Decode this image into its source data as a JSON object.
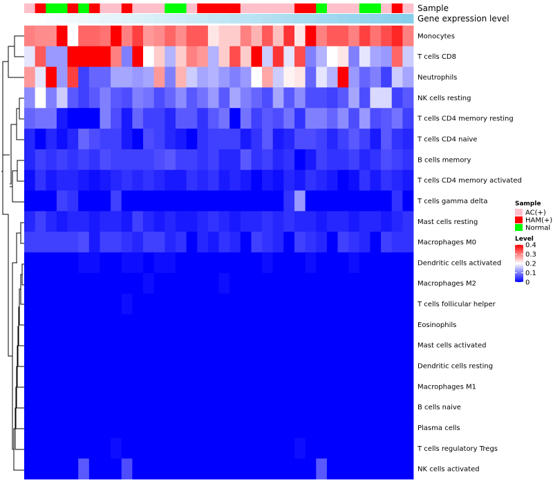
{
  "chart_data": {
    "type": "heatmap",
    "title": "",
    "annotation_labels": {
      "sample": "Sample",
      "gene_expression": "Gene expression level"
    },
    "rows": [
      "Monocytes",
      "T cells CD8",
      "Neutrophils",
      "NK cells resting",
      "T cells CD4 memory resting",
      "T cells CD4 naive",
      "B cells memory",
      "T cells CD4 memory activated",
      "T cells gamma delta",
      "Mast cells resting",
      "Macrophages M0",
      "Dendritic cells activated",
      "Macrophages M2",
      "T cells follicular helper",
      "Eosinophils",
      "Mast cells activated",
      "Dendritic cells resting",
      "Macrophages M1",
      "B cells naive",
      "Plasma cells",
      "T cells regulatory  Tregs",
      "NK cells activated"
    ],
    "sample_groups": [
      "AC(+)",
      "HAM(+)",
      "Normal",
      "Normal",
      "HAM(+)",
      "Normal",
      "HAM(+)",
      "AC(+)",
      "AC(+)",
      "HAM(+)",
      "AC(+)",
      "AC(+)",
      "AC(+)",
      "Normal",
      "Normal",
      "AC(+)",
      "HAM(+)",
      "HAM(+)",
      "HAM(+)",
      "HAM(+)",
      "AC(+)",
      "AC(+)",
      "AC(+)",
      "AC(+)",
      "AC(+)",
      "HAM(+)",
      "HAM(+)",
      "Normal",
      "AC(+)",
      "AC(+)",
      "AC(+)",
      "Normal",
      "Normal",
      "AC(+)",
      "HAM(+)",
      "AC(+)"
    ],
    "values": [
      [
        0.3,
        0.29,
        0.29,
        0.4,
        0.2,
        0.32,
        0.32,
        0.31,
        0.4,
        0.3,
        0.35,
        0.28,
        0.29,
        0.32,
        0.29,
        0.33,
        0.33,
        0.22,
        0.24,
        0.24,
        0.3,
        0.26,
        0.33,
        0.25,
        0.36,
        0.22,
        0.4,
        0.3,
        0.33,
        0.33,
        0.3,
        0.35,
        0.31,
        0.34,
        0.37,
        0.3
      ],
      [
        0.18,
        0.33,
        0.12,
        0.12,
        0.4,
        0.4,
        0.4,
        0.4,
        0.3,
        0.1,
        0.4,
        0.2,
        0.24,
        0.14,
        0.24,
        0.3,
        0.28,
        0.14,
        0.24,
        0.34,
        0.24,
        0.4,
        0.16,
        0.36,
        0.18,
        0.34,
        0.1,
        0.14,
        0.2,
        0.22,
        0.1,
        0.18,
        0.13,
        0.12,
        0.32,
        0.16
      ],
      [
        0.28,
        0.18,
        0.4,
        0.12,
        0.35,
        0.05,
        0.08,
        0.08,
        0.13,
        0.13,
        0.12,
        0.13,
        0.28,
        0.1,
        0.26,
        0.16,
        0.13,
        0.14,
        0.12,
        0.1,
        0.12,
        0.2,
        0.27,
        0.16,
        0.21,
        0.22,
        0.08,
        0.18,
        0.14,
        0.4,
        0.12,
        0.08,
        0.1,
        0.05,
        0.16,
        0.13
      ],
      [
        0.11,
        0.2,
        0.1,
        0.16,
        0.07,
        0.05,
        0.07,
        0.1,
        0.07,
        0.06,
        0.1,
        0.09,
        0.06,
        0.08,
        0.11,
        0.07,
        0.09,
        0.12,
        0.07,
        0.13,
        0.1,
        0.08,
        0.06,
        0.13,
        0.07,
        0.11,
        0.06,
        0.06,
        0.05,
        0.07,
        0.13,
        0.06,
        0.17,
        0.17,
        0.05,
        0.07
      ],
      [
        0.08,
        0.09,
        0.09,
        0.02,
        0.0,
        0.0,
        0.0,
        0.1,
        0.06,
        0.02,
        0.08,
        0.05,
        0.05,
        0.03,
        0.07,
        0.07,
        0.04,
        0.07,
        0.09,
        0.0,
        0.09,
        0.05,
        0.07,
        0.06,
        0.09,
        0.04,
        0.1,
        0.1,
        0.08,
        0.11,
        0.06,
        0.12,
        0.06,
        0.07,
        0.09,
        0.05
      ],
      [
        0.03,
        0.0,
        0.03,
        0.01,
        0.03,
        0.08,
        0.06,
        0.05,
        0.05,
        0.02,
        0.0,
        0.06,
        0.05,
        0.03,
        0.02,
        0.0,
        0.04,
        0.05,
        0.05,
        0.05,
        0.02,
        0.04,
        0.07,
        0.02,
        0.03,
        0.06,
        0.06,
        0.05,
        0.03,
        0.05,
        0.07,
        0.05,
        0.02,
        0.07,
        0.04,
        0.03
      ],
      [
        0.03,
        0.05,
        0.04,
        0.05,
        0.04,
        0.05,
        0.04,
        0.06,
        0.05,
        0.05,
        0.05,
        0.05,
        0.06,
        0.07,
        0.05,
        0.05,
        0.04,
        0.05,
        0.03,
        0.03,
        0.07,
        0.04,
        0.05,
        0.03,
        0.04,
        0.0,
        0.02,
        0.05,
        0.04,
        0.04,
        0.05,
        0.03,
        0.04,
        0.06,
        0.05,
        0.04
      ],
      [
        0.01,
        0.04,
        0.02,
        0.03,
        0.03,
        0.02,
        0.01,
        0.02,
        0.03,
        0.04,
        0.03,
        0.04,
        0.03,
        0.02,
        0.02,
        0.04,
        0.03,
        0.04,
        0.02,
        0.03,
        0.02,
        0.0,
        0.02,
        0.01,
        0.03,
        0.02,
        0.04,
        0.03,
        0.02,
        0.0,
        0.01,
        0.04,
        0.02,
        0.04,
        0.03,
        0.02
      ],
      [
        0.0,
        0.0,
        0.0,
        0.05,
        0.04,
        0.0,
        0.0,
        0.0,
        0.05,
        0.0,
        0.0,
        0.0,
        0.0,
        0.0,
        0.0,
        0.0,
        0.0,
        0.0,
        0.0,
        0.0,
        0.0,
        0.0,
        0.0,
        0.0,
        0.04,
        0.12,
        0.0,
        0.0,
        0.0,
        0.0,
        0.0,
        0.0,
        0.0,
        0.0,
        0.04,
        0.0
      ],
      [
        0.03,
        0.05,
        0.03,
        0.02,
        0.03,
        0.03,
        0.02,
        0.03,
        0.03,
        0.02,
        0.05,
        0.03,
        0.02,
        0.03,
        0.02,
        0.02,
        0.03,
        0.04,
        0.03,
        0.02,
        0.03,
        0.03,
        0.04,
        0.03,
        0.04,
        0.03,
        0.03,
        0.02,
        0.03,
        0.03,
        0.02,
        0.03,
        0.03,
        0.02,
        0.03,
        0.04
      ],
      [
        0.05,
        0.05,
        0.05,
        0.05,
        0.05,
        0.06,
        0.02,
        0.05,
        0.05,
        0.04,
        0.03,
        0.05,
        0.05,
        0.03,
        0.04,
        0.0,
        0.03,
        0.02,
        0.04,
        0.03,
        0.0,
        0.05,
        0.04,
        0.03,
        0.0,
        0.05,
        0.04,
        0.03,
        0.0,
        0.05,
        0.04,
        0.03,
        0.0,
        0.05,
        0.04,
        0.04
      ],
      [
        0.0,
        0.0,
        0.0,
        0.0,
        0.0,
        0.01,
        0.01,
        0.0,
        0.0,
        0.01,
        0.01,
        0.0,
        0.01,
        0.01,
        0.0,
        0.0,
        0.0,
        0.0,
        0.0,
        0.0,
        0.0,
        0.0,
        0.01,
        0.0,
        0.0,
        0.0,
        0.01,
        0.0,
        0.0,
        0.0,
        0.01,
        0.0,
        0.0,
        0.0,
        0.0,
        0.0
      ],
      [
        0.0,
        0.0,
        0.0,
        0.0,
        0.0,
        0.0,
        0.0,
        0.0,
        0.0,
        0.0,
        0.0,
        0.01,
        0.0,
        0.0,
        0.0,
        0.0,
        0.0,
        0.0,
        0.01,
        0.0,
        0.0,
        0.0,
        0.0,
        0.0,
        0.0,
        0.0,
        0.0,
        0.0,
        0.0,
        0.0,
        0.0,
        0.0,
        0.0,
        0.0,
        0.0,
        0.0
      ],
      [
        0.0,
        0.0,
        0.0,
        0.0,
        0.0,
        0.0,
        0.0,
        0.0,
        0.0,
        0.01,
        0.0,
        0.0,
        0.0,
        0.0,
        0.0,
        0.0,
        0.0,
        0.0,
        0.0,
        0.0,
        0.0,
        0.0,
        0.0,
        0.0,
        0.0,
        0.0,
        0.0,
        0.0,
        0.0,
        0.0,
        0.0,
        0.0,
        0.0,
        0.0,
        0.0,
        0.0
      ],
      [
        0.0,
        0.0,
        0.0,
        0.0,
        0.0,
        0.0,
        0.0,
        0.0,
        0.0,
        0.0,
        0.0,
        0.0,
        0.0,
        0.0,
        0.0,
        0.0,
        0.0,
        0.0,
        0.0,
        0.0,
        0.0,
        0.0,
        0.0,
        0.0,
        0.0,
        0.0,
        0.0,
        0.0,
        0.0,
        0.0,
        0.0,
        0.0,
        0.0,
        0.0,
        0.0,
        0.0
      ],
      [
        0.0,
        0.0,
        0.0,
        0.0,
        0.0,
        0.0,
        0.0,
        0.0,
        0.0,
        0.0,
        0.0,
        0.0,
        0.0,
        0.0,
        0.0,
        0.0,
        0.0,
        0.0,
        0.0,
        0.0,
        0.0,
        0.0,
        0.0,
        0.0,
        0.0,
        0.0,
        0.0,
        0.0,
        0.0,
        0.0,
        0.0,
        0.0,
        0.0,
        0.0,
        0.0,
        0.0
      ],
      [
        0.0,
        0.0,
        0.0,
        0.0,
        0.0,
        0.0,
        0.0,
        0.0,
        0.0,
        0.0,
        0.0,
        0.0,
        0.0,
        0.0,
        0.0,
        0.0,
        0.0,
        0.0,
        0.0,
        0.0,
        0.0,
        0.0,
        0.0,
        0.0,
        0.0,
        0.0,
        0.0,
        0.0,
        0.0,
        0.0,
        0.0,
        0.0,
        0.0,
        0.0,
        0.0,
        0.0
      ],
      [
        0.0,
        0.0,
        0.0,
        0.0,
        0.0,
        0.0,
        0.0,
        0.0,
        0.0,
        0.0,
        0.0,
        0.0,
        0.0,
        0.0,
        0.0,
        0.0,
        0.0,
        0.0,
        0.0,
        0.0,
        0.0,
        0.0,
        0.0,
        0.0,
        0.0,
        0.0,
        0.0,
        0.0,
        0.0,
        0.0,
        0.0,
        0.0,
        0.0,
        0.0,
        0.0,
        0.0
      ],
      [
        0.0,
        0.0,
        0.0,
        0.0,
        0.0,
        0.0,
        0.0,
        0.0,
        0.0,
        0.0,
        0.0,
        0.0,
        0.0,
        0.0,
        0.0,
        0.0,
        0.0,
        0.0,
        0.0,
        0.0,
        0.0,
        0.0,
        0.0,
        0.0,
        0.0,
        0.0,
        0.0,
        0.0,
        0.0,
        0.0,
        0.0,
        0.0,
        0.0,
        0.0,
        0.0,
        0.0
      ],
      [
        0.0,
        0.0,
        0.0,
        0.0,
        0.0,
        0.0,
        0.0,
        0.0,
        0.0,
        0.0,
        0.0,
        0.0,
        0.0,
        0.0,
        0.0,
        0.0,
        0.0,
        0.0,
        0.0,
        0.0,
        0.0,
        0.0,
        0.0,
        0.0,
        0.0,
        0.0,
        0.0,
        0.0,
        0.0,
        0.0,
        0.0,
        0.0,
        0.0,
        0.0,
        0.0,
        0.0
      ],
      [
        0.0,
        0.0,
        0.0,
        0.0,
        0.0,
        0.0,
        0.0,
        0.0,
        0.01,
        0.0,
        0.0,
        0.0,
        0.0,
        0.0,
        0.0,
        0.0,
        0.0,
        0.0,
        0.0,
        0.0,
        0.0,
        0.0,
        0.0,
        0.0,
        0.0,
        0.01,
        0.0,
        0.0,
        0.0,
        0.0,
        0.0,
        0.0,
        0.0,
        0.0,
        0.0,
        0.0
      ],
      [
        0.0,
        0.0,
        0.0,
        0.0,
        0.0,
        0.07,
        0.0,
        0.0,
        0.0,
        0.06,
        0.0,
        0.0,
        0.0,
        0.0,
        0.0,
        0.0,
        0.0,
        0.0,
        0.0,
        0.0,
        0.0,
        0.0,
        0.0,
        0.0,
        0.0,
        0.0,
        0.0,
        0.07,
        0.0,
        0.0,
        0.0,
        0.0,
        0.0,
        0.0,
        0.0,
        0.0
      ]
    ],
    "legend": {
      "sample_title": "Sample",
      "sample_entries": [
        {
          "label": "AC(+)",
          "color": "#FFC0CB"
        },
        {
          "label": "HAM(+)",
          "color": "#FF0000"
        },
        {
          "label": "Normal",
          "color": "#00FF00"
        }
      ],
      "level_title": "Level",
      "level_ticks": [
        0.4,
        0.3,
        0.2,
        0.1,
        0
      ],
      "range": [
        0,
        0.4
      ]
    },
    "gene_expression_color": "#87CEEB",
    "colors": {
      "low": "#0000FF",
      "mid": "#FFFFFF",
      "high": "#FF0000"
    }
  }
}
